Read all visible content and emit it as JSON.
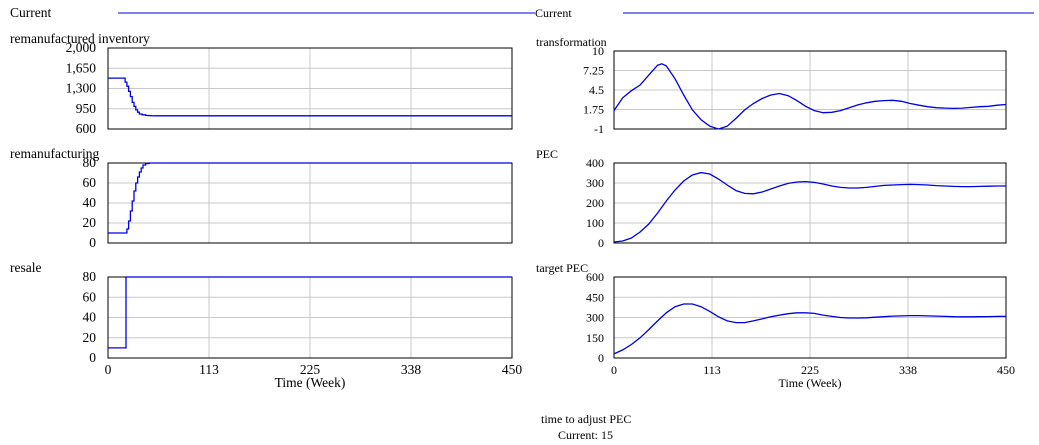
{
  "legend": {
    "left": "Current",
    "right": "Current"
  },
  "footer": {
    "label": "time to adjust PEC",
    "value": "Current: 15"
  },
  "chart_data": [
    {
      "type": "line",
      "title": "remanufactured inventory",
      "xlim": [
        0,
        450
      ],
      "ylim": [
        600,
        2000
      ],
      "yticks": [
        "2,000",
        "1,650",
        "1,300",
        "950",
        "600"
      ],
      "xticks": [],
      "xlabel": "",
      "grid": true,
      "series": [
        {
          "x": [
            0,
            19,
            19,
            21,
            21,
            23,
            23,
            25,
            25,
            27,
            27,
            29,
            29,
            31,
            31,
            33,
            33,
            35,
            35,
            38,
            38,
            42,
            42,
            48,
            55,
            450
          ],
          "y": [
            1480,
            1480,
            1410,
            1410,
            1340,
            1340,
            1250,
            1250,
            1160,
            1160,
            1060,
            1060,
            990,
            990,
            930,
            930,
            890,
            890,
            860,
            860,
            845,
            845,
            835,
            830,
            828,
            828
          ]
        }
      ]
    },
    {
      "type": "line",
      "title": "remanufacturing",
      "xlim": [
        0,
        450
      ],
      "ylim": [
        0,
        80
      ],
      "yticks": [
        "80",
        "60",
        "40",
        "20",
        "0"
      ],
      "xticks": [],
      "xlabel": "",
      "grid": true,
      "series": [
        {
          "x": [
            0,
            21,
            21,
            23,
            23,
            25,
            25,
            27,
            27,
            29,
            29,
            31,
            31,
            33,
            33,
            35,
            35,
            37,
            37,
            39,
            39,
            42,
            42,
            46,
            46,
            50,
            50,
            450
          ],
          "y": [
            10,
            10,
            14,
            14,
            22,
            22,
            32,
            32,
            42,
            42,
            52,
            52,
            60,
            60,
            66,
            66,
            71,
            71,
            75,
            75,
            78,
            78,
            79.5,
            79.5,
            80,
            80,
            80,
            80
          ]
        }
      ]
    },
    {
      "type": "line",
      "title": "resale",
      "xlim": [
        0,
        450
      ],
      "ylim": [
        0,
        80
      ],
      "yticks": [
        "80",
        "60",
        "40",
        "20",
        "0"
      ],
      "xticks": [
        "0",
        "113",
        "225",
        "338",
        "450"
      ],
      "xlabel": "Time (Week)",
      "grid": true,
      "series": [
        {
          "x": [
            0,
            20,
            20,
            450
          ],
          "y": [
            10,
            10,
            80,
            80
          ]
        }
      ]
    },
    {
      "type": "line",
      "title": "transformation",
      "xlim": [
        0,
        450
      ],
      "ylim": [
        -1,
        10
      ],
      "yticks": [
        "10",
        "7.25",
        "4.5",
        "1.75",
        "-1"
      ],
      "xticks": [],
      "xlabel": "",
      "grid": true,
      "series": [
        {
          "x": [
            0,
            10,
            20,
            30,
            40,
            50,
            55,
            60,
            70,
            80,
            90,
            100,
            110,
            120,
            130,
            140,
            150,
            160,
            170,
            180,
            190,
            200,
            210,
            220,
            230,
            240,
            250,
            260,
            270,
            280,
            290,
            300,
            310,
            320,
            330,
            340,
            350,
            360,
            370,
            380,
            390,
            400,
            410,
            420,
            430,
            440,
            450
          ],
          "y": [
            1.6,
            3.4,
            4.4,
            5.2,
            6.6,
            8.0,
            8.2,
            7.9,
            6.1,
            3.8,
            1.7,
            0.3,
            -0.6,
            -1.0,
            -0.6,
            0.5,
            1.7,
            2.6,
            3.3,
            3.8,
            4.0,
            3.7,
            3.0,
            2.2,
            1.6,
            1.3,
            1.35,
            1.6,
            2.0,
            2.4,
            2.7,
            2.9,
            3.0,
            3.05,
            2.9,
            2.6,
            2.35,
            2.15,
            2.0,
            1.95,
            1.9,
            1.95,
            2.05,
            2.15,
            2.2,
            2.35,
            2.45
          ]
        }
      ]
    },
    {
      "type": "line",
      "title": "PEC",
      "xlim": [
        0,
        450
      ],
      "ylim": [
        0,
        400
      ],
      "yticks": [
        "400",
        "300",
        "200",
        "100",
        "0"
      ],
      "xticks": [],
      "xlabel": "",
      "grid": true,
      "series": [
        {
          "x": [
            0,
            10,
            20,
            30,
            40,
            50,
            60,
            70,
            80,
            90,
            100,
            110,
            120,
            130,
            140,
            150,
            160,
            170,
            180,
            190,
            200,
            210,
            220,
            230,
            240,
            250,
            260,
            270,
            280,
            290,
            300,
            310,
            320,
            330,
            340,
            350,
            360,
            370,
            380,
            390,
            400,
            410,
            420,
            430,
            440,
            450
          ],
          "y": [
            5,
            10,
            25,
            55,
            95,
            150,
            210,
            265,
            310,
            340,
            352,
            345,
            320,
            290,
            262,
            248,
            246,
            255,
            270,
            285,
            298,
            305,
            307,
            303,
            295,
            285,
            278,
            275,
            275,
            278,
            283,
            288,
            290,
            292,
            293,
            292,
            290,
            287,
            285,
            283,
            282,
            282,
            283,
            284,
            285,
            285
          ]
        }
      ]
    },
    {
      "type": "line",
      "title": "target PEC",
      "xlim": [
        0,
        450
      ],
      "ylim": [
        0,
        600
      ],
      "yticks": [
        "600",
        "450",
        "300",
        "150",
        "0"
      ],
      "xticks": [
        "0",
        "113",
        "225",
        "338",
        "450"
      ],
      "xlabel": "Time (Week)",
      "grid": true,
      "series": [
        {
          "x": [
            0,
            10,
            20,
            30,
            40,
            50,
            60,
            70,
            80,
            90,
            100,
            110,
            120,
            130,
            140,
            150,
            160,
            170,
            180,
            190,
            200,
            210,
            220,
            230,
            240,
            250,
            260,
            270,
            280,
            290,
            300,
            310,
            320,
            330,
            340,
            350,
            360,
            370,
            380,
            390,
            400,
            410,
            420,
            430,
            440,
            450
          ],
          "y": [
            30,
            60,
            100,
            150,
            210,
            275,
            335,
            380,
            400,
            400,
            380,
            345,
            305,
            275,
            262,
            262,
            275,
            290,
            305,
            318,
            328,
            335,
            335,
            330,
            318,
            308,
            300,
            296,
            296,
            298,
            302,
            306,
            310,
            312,
            314,
            314,
            312,
            310,
            308,
            306,
            305,
            305,
            306,
            307,
            308,
            308
          ]
        }
      ]
    }
  ]
}
